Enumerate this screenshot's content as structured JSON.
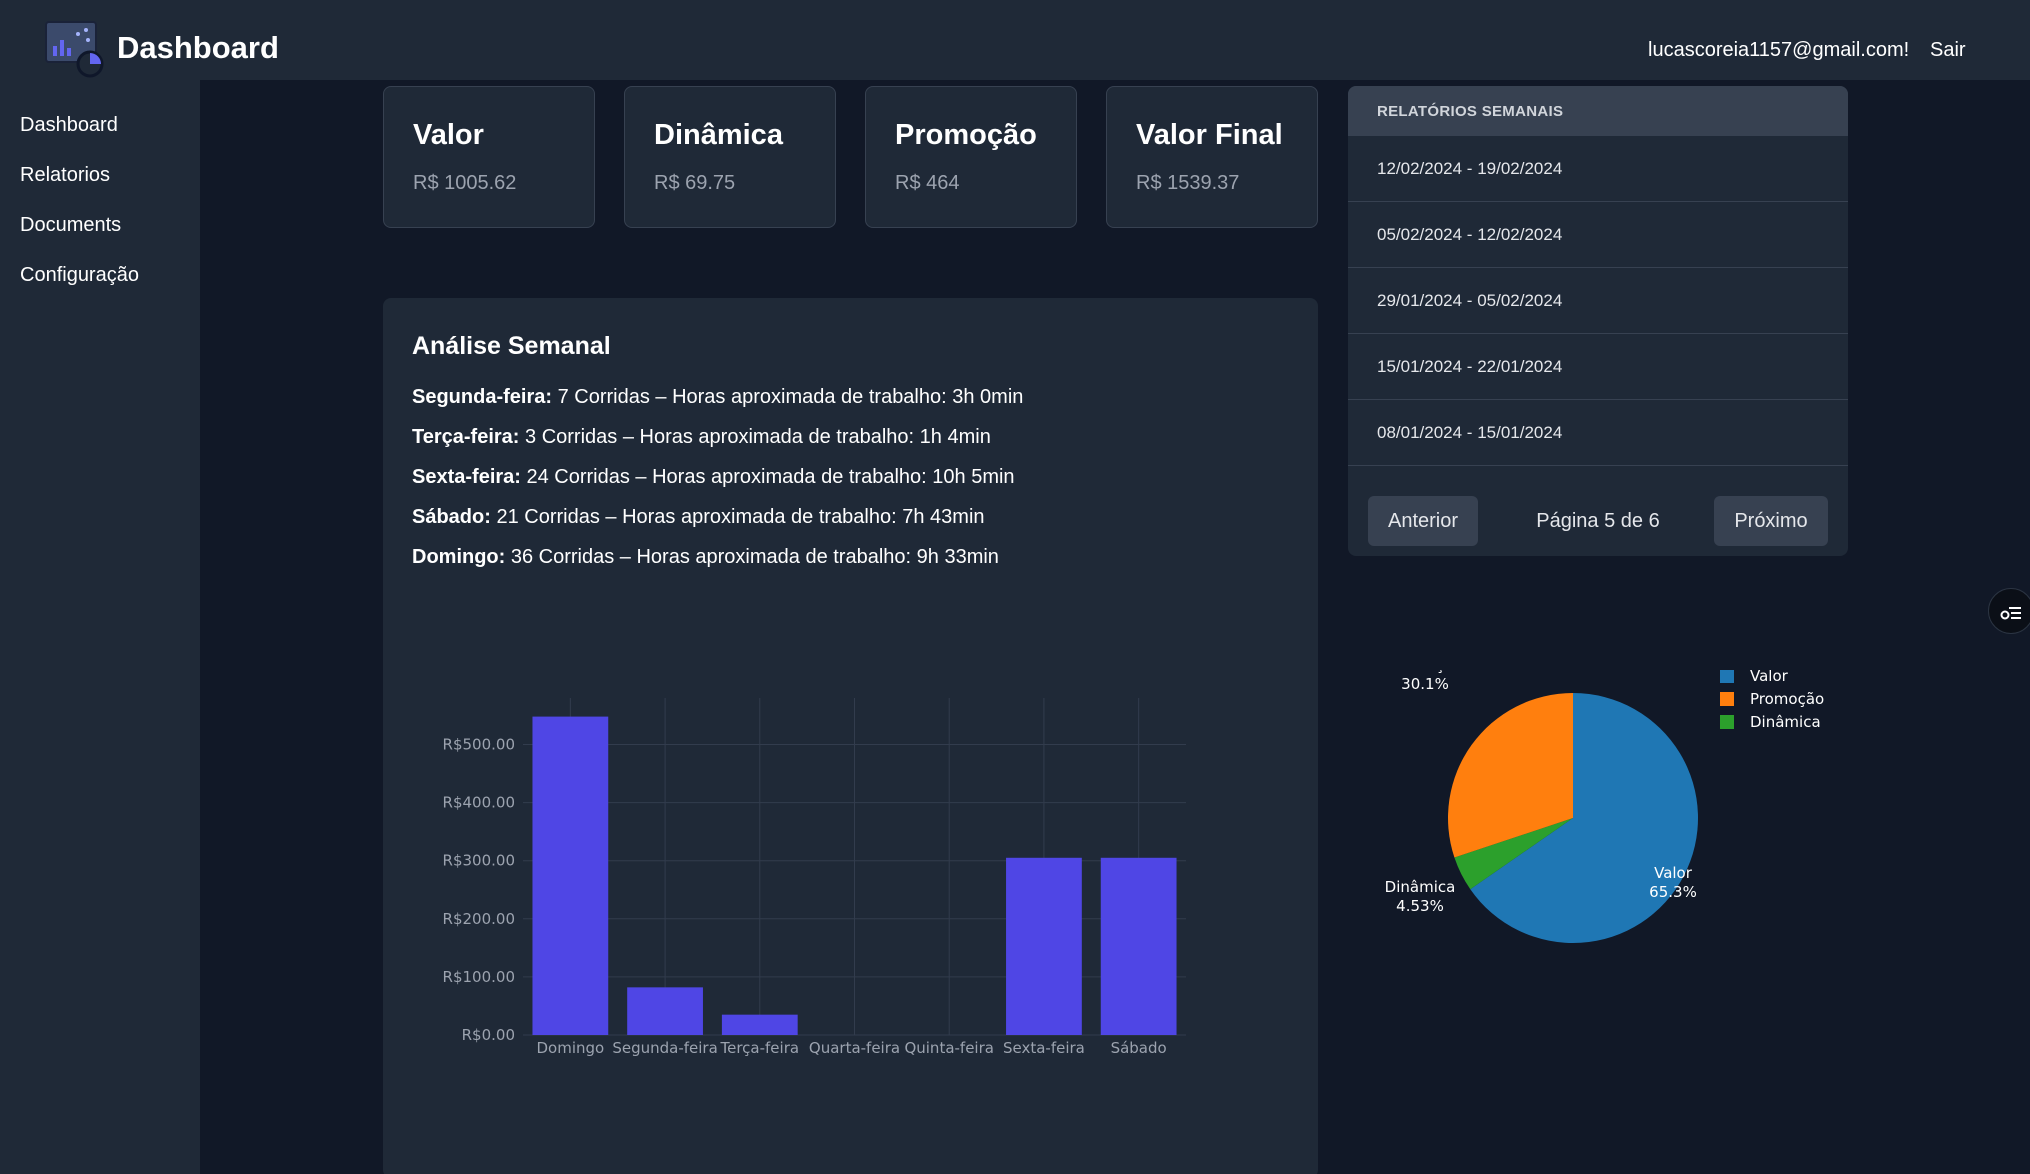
{
  "header": {
    "brand": "Dashboard",
    "user_email": "lucascoreia1157@gmail.com!",
    "logout_label": "Sair"
  },
  "sidebar": {
    "items": [
      {
        "label": "Dashboard"
      },
      {
        "label": "Relatorios"
      },
      {
        "label": "Documents"
      },
      {
        "label": "Configuração"
      }
    ]
  },
  "cards": [
    {
      "title": "Valor",
      "value": "R$ 1005.62"
    },
    {
      "title": "Dinâmica",
      "value": "R$ 69.75"
    },
    {
      "title": "Promoção",
      "value": "R$ 464"
    },
    {
      "title": "Valor Final",
      "value": "R$ 1539.37"
    }
  ],
  "analysis": {
    "title": "Análise Semanal",
    "days": [
      {
        "day": "Segunda-feira:",
        "text": " 7 Corridas – Horas aproximada de trabalho: 3h 0min"
      },
      {
        "day": "Terça-feira:",
        "text": " 3 Corridas – Horas aproximada de trabalho: 1h 4min"
      },
      {
        "day": "Sexta-feira:",
        "text": " 24 Corridas – Horas aproximada de trabalho: 10h 5min"
      },
      {
        "day": "Sábado:",
        "text": " 21 Corridas – Horas aproximada de trabalho: 7h 43min"
      },
      {
        "day": "Domingo:",
        "text": " 36 Corridas – Horas aproximada de trabalho: 9h 33min"
      }
    ]
  },
  "reports": {
    "title": "RELATÓRIOS SEMANAIS",
    "rows": [
      {
        "label": "12/02/2024 - 19/02/2024"
      },
      {
        "label": "05/02/2024 - 12/02/2024"
      },
      {
        "label": "29/01/2024 - 05/02/2024"
      },
      {
        "label": "15/01/2024 - 22/01/2024"
      },
      {
        "label": "08/01/2024 - 15/01/2024"
      }
    ],
    "prev_label": "Anterior",
    "page_info": "Página 5 de 6",
    "next_label": "Próximo"
  },
  "colors": {
    "bar": "#4f46e5",
    "pie_valor": "#1f77b4",
    "pie_promocao": "#ff7f0e",
    "pie_dinamica": "#2ca02c"
  },
  "icons": [
    "dashboard-logo-icon",
    "sliders-icon"
  ],
  "chart_data": [
    {
      "type": "bar",
      "categories": [
        "Domingo",
        "Segunda-feira",
        "Terça-feira",
        "Quarta-feira",
        "Quinta-feira",
        "Sexta-feira",
        "Sábado"
      ],
      "values": [
        548,
        82,
        35,
        0,
        0,
        305,
        305
      ],
      "ylim": [
        0,
        580
      ],
      "yticks": [
        0,
        100,
        200,
        300,
        400,
        500
      ],
      "ytick_labels": [
        "R$0.00",
        "R$100.00",
        "R$200.00",
        "R$300.00",
        "R$400.00",
        "R$500.00"
      ],
      "grid": true
    },
    {
      "type": "pie",
      "labels": [
        "Valor",
        "Promoção",
        "Dinâmica"
      ],
      "values": [
        65.3,
        30.1,
        4.53
      ],
      "percent_labels": [
        "65.3%",
        "30.1%",
        "4.53%"
      ],
      "legend": "top-right"
    }
  ]
}
